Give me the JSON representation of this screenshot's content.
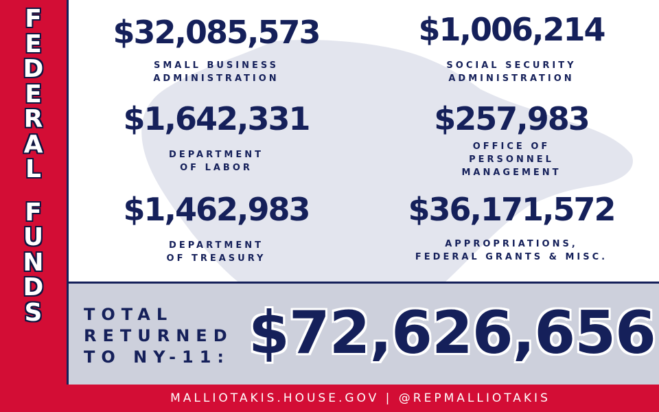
{
  "side_title": {
    "word1": [
      "F",
      "E",
      "D",
      "E",
      "R",
      "A",
      "L"
    ],
    "word2": [
      "F",
      "U",
      "N",
      "D",
      "S"
    ]
  },
  "stats": [
    {
      "amount": "$32,085,573",
      "label_lines": [
        "SMALL BUSINESS",
        "ADMINISTRATION"
      ]
    },
    {
      "amount": "$1,006,214",
      "label_lines": [
        "SOCIAL SECURITY",
        "ADMINISTRATION"
      ]
    },
    {
      "amount": "$1,642,331",
      "label_lines": [
        "DEPARTMENT",
        "OF LABOR"
      ]
    },
    {
      "amount": "$257,983",
      "label_lines": [
        "OFFICE OF",
        "PERSONNEL",
        "MANAGEMENT"
      ]
    },
    {
      "amount": "$1,462,983",
      "label_lines": [
        "DEPARTMENT",
        "OF TREASURY"
      ]
    },
    {
      "amount": "$36,171,572",
      "label_lines": [
        "APPROPRIATIONS,",
        "FEDERAL GRANTS & MISC."
      ]
    }
  ],
  "total": {
    "label_lines": [
      "TOTAL",
      "RETURNED",
      "TO NY-11:"
    ],
    "amount": "$72,626,656"
  },
  "footer": {
    "text": "MALLIOTAKIS.HOUSE.GOV | @REPMALLIOTAKIS"
  },
  "colors": {
    "red": "#d30d35",
    "navy": "#15205a",
    "panel_gray": "#cdd0dc"
  }
}
